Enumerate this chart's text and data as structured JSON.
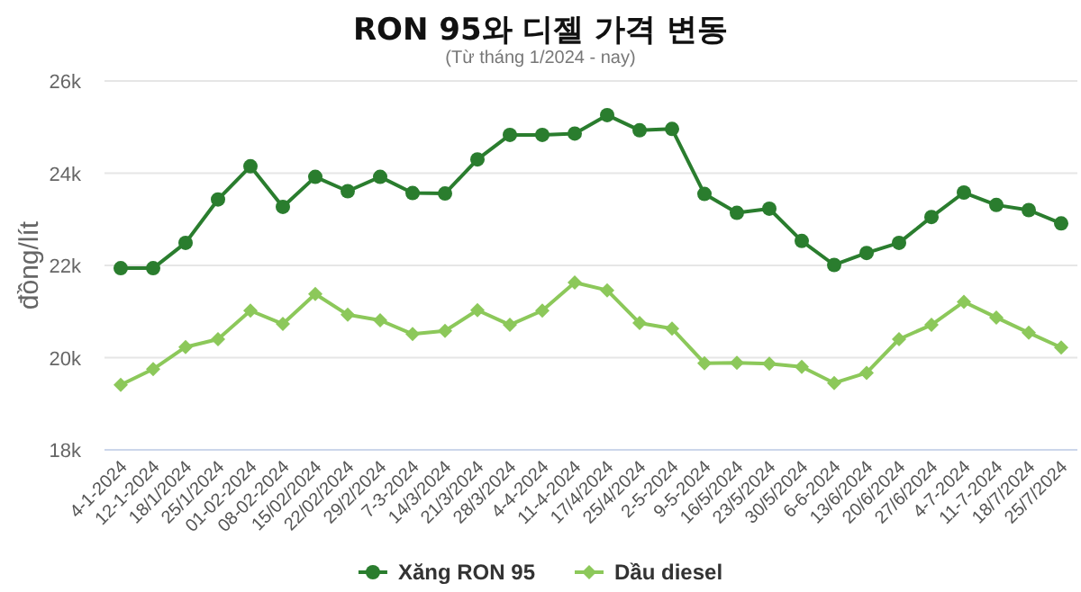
{
  "chart_data": {
    "type": "line",
    "title": "RON 95와 디젤 가격 변동",
    "subtitle": "(Từ tháng 1/2024 - nay)",
    "ylabel": "đồng/lít",
    "categories": [
      "4-1-2024",
      "12-1-2024",
      "18/1/2024",
      "25/1/2024",
      "01-02-2024",
      "08-02-2024",
      "15/02/2024",
      "22/02/2024",
      "29/2/2024",
      "7-3-2024",
      "14/3/2024",
      "21/3/2024",
      "28/3/2024",
      "4-4-2024",
      "11-4-2024",
      "17/4/2024",
      "25/4/2024",
      "2-5-2024",
      "9-5-2024",
      "16/5/2024",
      "23/5/2024",
      "30/5/2024",
      "6-6-2024",
      "13/6/2024",
      "20/6/2024",
      "27/6/2024",
      "4-7-2024",
      "11-7-2024",
      "18/7/2024",
      "25/7/2024"
    ],
    "series": [
      {
        "name": "Xăng RON 95",
        "color": "#2a7d2e",
        "marker": "circle",
        "values": [
          21940,
          21940,
          22490,
          23430,
          24150,
          23270,
          23920,
          23610,
          23920,
          23570,
          23560,
          24300,
          24830,
          24830,
          24860,
          25260,
          24930,
          24960,
          23550,
          23140,
          23230,
          22530,
          22010,
          22270,
          22490,
          23050,
          23580,
          23310,
          23200,
          22910
        ]
      },
      {
        "name": "Dầu diesel",
        "color": "#8cc85a",
        "marker": "diamond",
        "values": [
          19410,
          19750,
          20230,
          20400,
          21020,
          20730,
          21380,
          20930,
          20810,
          20510,
          20580,
          21030,
          20710,
          21020,
          21630,
          21460,
          20750,
          20630,
          19880,
          19890,
          19870,
          19800,
          19450,
          19670,
          20400,
          20710,
          21210,
          20870,
          20540,
          20220
        ]
      }
    ],
    "ylim": [
      18000,
      26000
    ],
    "yticks": [
      {
        "value": 18000,
        "label": "18k"
      },
      {
        "value": 20000,
        "label": "20k"
      },
      {
        "value": 22000,
        "label": "22k"
      },
      {
        "value": 24000,
        "label": "24k"
      },
      {
        "value": 26000,
        "label": "26k"
      }
    ],
    "grid": "y",
    "legend": "bottom"
  }
}
